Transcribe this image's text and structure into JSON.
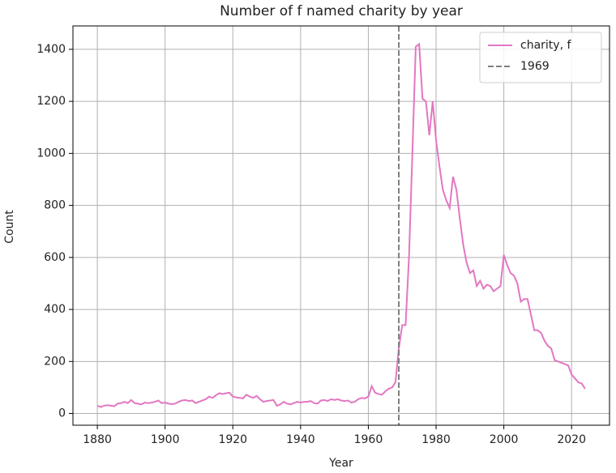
{
  "chart_data": {
    "type": "line",
    "title": "Number of f named charity by year",
    "x_label": "Year",
    "y_label": "Count",
    "x": [
      1880,
      1881,
      1882,
      1883,
      1884,
      1885,
      1886,
      1887,
      1888,
      1889,
      1890,
      1891,
      1892,
      1893,
      1894,
      1895,
      1896,
      1897,
      1898,
      1899,
      1900,
      1901,
      1902,
      1903,
      1904,
      1905,
      1906,
      1907,
      1908,
      1909,
      1910,
      1911,
      1912,
      1913,
      1914,
      1915,
      1916,
      1917,
      1918,
      1919,
      1920,
      1921,
      1922,
      1923,
      1924,
      1925,
      1926,
      1927,
      1928,
      1929,
      1930,
      1931,
      1932,
      1933,
      1934,
      1935,
      1936,
      1937,
      1938,
      1939,
      1940,
      1941,
      1942,
      1943,
      1944,
      1945,
      1946,
      1947,
      1948,
      1949,
      1950,
      1951,
      1952,
      1953,
      1954,
      1955,
      1956,
      1957,
      1958,
      1959,
      1960,
      1961,
      1962,
      1963,
      1964,
      1965,
      1966,
      1967,
      1968,
      1969,
      1970,
      1971,
      1972,
      1973,
      1974,
      1975,
      1976,
      1977,
      1978,
      1979,
      1980,
      1981,
      1982,
      1983,
      1984,
      1985,
      1986,
      1987,
      1988,
      1989,
      1990,
      1991,
      1992,
      1993,
      1994,
      1995,
      1996,
      1997,
      1998,
      1999,
      2000,
      2001,
      2002,
      2003,
      2004,
      2005,
      2006,
      2007,
      2008,
      2009,
      2010,
      2011,
      2012,
      2013,
      2014,
      2015,
      2016,
      2017,
      2018,
      2019,
      2020,
      2021,
      2022,
      2023,
      2024
    ],
    "series": [
      {
        "name": "charity, f",
        "color": "#e377c2",
        "values": [
          30,
          25,
          30,
          32,
          30,
          28,
          38,
          40,
          45,
          40,
          52,
          40,
          38,
          35,
          42,
          40,
          42,
          45,
          50,
          40,
          42,
          38,
          36,
          38,
          45,
          50,
          52,
          48,
          50,
          40,
          45,
          50,
          55,
          65,
          60,
          70,
          78,
          75,
          78,
          80,
          65,
          62,
          60,
          58,
          72,
          65,
          60,
          68,
          55,
          45,
          48,
          50,
          52,
          30,
          35,
          45,
          38,
          35,
          40,
          45,
          42,
          45,
          45,
          48,
          40,
          38,
          50,
          52,
          48,
          55,
          52,
          55,
          50,
          48,
          50,
          42,
          45,
          55,
          60,
          58,
          65,
          105,
          80,
          75,
          72,
          85,
          95,
          100,
          120,
          250,
          340,
          340,
          600,
          1000,
          1410,
          1420,
          1210,
          1200,
          1070,
          1200,
          1050,
          950,
          860,
          820,
          790,
          910,
          860,
          750,
          650,
          580,
          540,
          550,
          490,
          510,
          480,
          495,
          490,
          470,
          480,
          490,
          610,
          570,
          540,
          530,
          500,
          430,
          440,
          440,
          380,
          320,
          320,
          310,
          280,
          260,
          250,
          205,
          200,
          195,
          190,
          185,
          150,
          135,
          120,
          115,
          95
        ]
      }
    ],
    "vline": {
      "x": 1969,
      "label": "1969",
      "color": "#808080"
    },
    "xlim": [
      1872.8,
      2031.2
    ],
    "ylim": [
      -45,
      1490
    ],
    "xticks": [
      1880,
      1900,
      1920,
      1940,
      1960,
      1980,
      2000,
      2020
    ],
    "yticks": [
      0,
      200,
      400,
      600,
      800,
      1000,
      1200,
      1400
    ],
    "grid": true,
    "legend": "upper right"
  }
}
